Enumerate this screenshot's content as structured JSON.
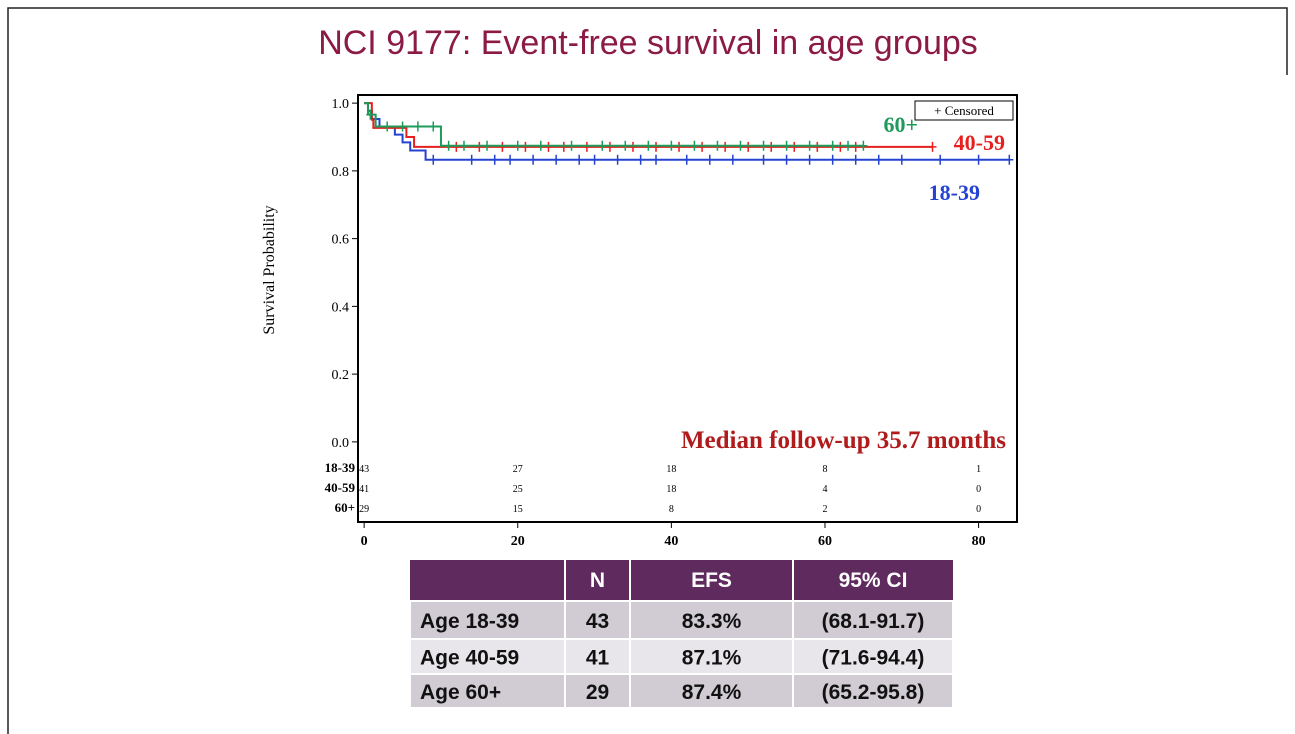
{
  "chart_data": {
    "type": "km",
    "title": "NCI 9177: Event-free survival in age groups",
    "ylabel": "Survival Probability",
    "annotation": "Median follow-up 35.7 months",
    "censor_legend": "+ Censored",
    "xlim": [
      -0.8,
      85
    ],
    "ylim": [
      -0.024,
      1.024
    ],
    "xticks": [
      0,
      20,
      40,
      60,
      80
    ],
    "yticks": [
      {
        "value": 0,
        "label": "0.0"
      },
      0.2,
      0.4,
      0.6,
      0.8,
      {
        "value": 1,
        "label": "1.0"
      }
    ],
    "series": [
      {
        "name": "18-39",
        "color": "#2443d0",
        "x": [
          0,
          0.5,
          1,
          2,
          4,
          5,
          6,
          8,
          84
        ],
        "values": [
          1,
          0.977,
          0.953,
          0.93,
          0.907,
          0.884,
          0.86,
          0.833,
          0.833
        ],
        "censor_x": [
          9,
          14,
          17,
          19,
          22,
          25,
          28,
          30,
          33,
          36,
          38,
          42,
          45,
          48,
          52,
          55,
          58,
          61,
          64,
          67,
          70,
          75,
          80,
          84
        ],
        "censor_values": [
          0.833,
          0.833,
          0.833,
          0.833,
          0.833,
          0.833,
          0.833,
          0.833,
          0.833,
          0.833,
          0.833,
          0.833,
          0.833,
          0.833,
          0.833,
          0.833,
          0.833,
          0.833,
          0.833,
          0.833,
          0.833,
          0.833,
          0.833,
          0.833
        ]
      },
      {
        "name": "40-59",
        "color": "#e5201f",
        "x": [
          0,
          1,
          1.2,
          5.5,
          6.5,
          74
        ],
        "values": [
          1,
          0.951,
          0.927,
          0.9,
          0.871,
          0.871
        ],
        "censor_x": [
          12,
          15,
          18,
          21,
          24,
          26,
          29,
          32,
          35,
          38,
          41,
          44,
          47,
          50,
          53,
          56,
          59,
          62,
          64,
          74
        ],
        "censor_values": [
          0.871,
          0.871,
          0.871,
          0.871,
          0.871,
          0.871,
          0.871,
          0.871,
          0.871,
          0.871,
          0.871,
          0.871,
          0.871,
          0.871,
          0.871,
          0.871,
          0.871,
          0.871,
          0.871,
          0.871
        ]
      },
      {
        "name": "60+",
        "color": "#1e9a5a",
        "x": [
          0,
          0.5,
          1.5,
          10,
          65
        ],
        "values": [
          1,
          0.966,
          0.931,
          0.874,
          0.874
        ],
        "censor_x": [
          0.8,
          3,
          5,
          7,
          9,
          11,
          13,
          16,
          20,
          23,
          27,
          31,
          34,
          37,
          40,
          43,
          46,
          49,
          52,
          55,
          58,
          61,
          63,
          65
        ],
        "censor_values": [
          0.966,
          0.931,
          0.931,
          0.931,
          0.931,
          0.874,
          0.874,
          0.874,
          0.874,
          0.874,
          0.874,
          0.874,
          0.874,
          0.874,
          0.874,
          0.874,
          0.874,
          0.874,
          0.874,
          0.874,
          0.874,
          0.874,
          0.874,
          0.874
        ]
      }
    ],
    "risk_table": {
      "times": [
        0,
        20,
        40,
        60,
        80
      ],
      "rows": [
        {
          "name": "18-39",
          "counts": [
            43,
            27,
            18,
            8,
            1
          ]
        },
        {
          "name": "40-59",
          "counts": [
            41,
            25,
            18,
            4,
            0
          ]
        },
        {
          "name": "60+",
          "counts": [
            29,
            15,
            8,
            2,
            0
          ]
        }
      ]
    }
  },
  "table": {
    "header": [
      "N",
      "EFS",
      "95% CI"
    ],
    "rows": [
      [
        "Age 18-39",
        "43",
        "83.3%",
        "(68.1-91.7)"
      ],
      [
        "Age 40-59",
        "41",
        "87.1%",
        "(71.6-94.4)"
      ],
      [
        "Age 60+",
        "29",
        "87.4%",
        "(65.2-95.8)"
      ]
    ]
  }
}
